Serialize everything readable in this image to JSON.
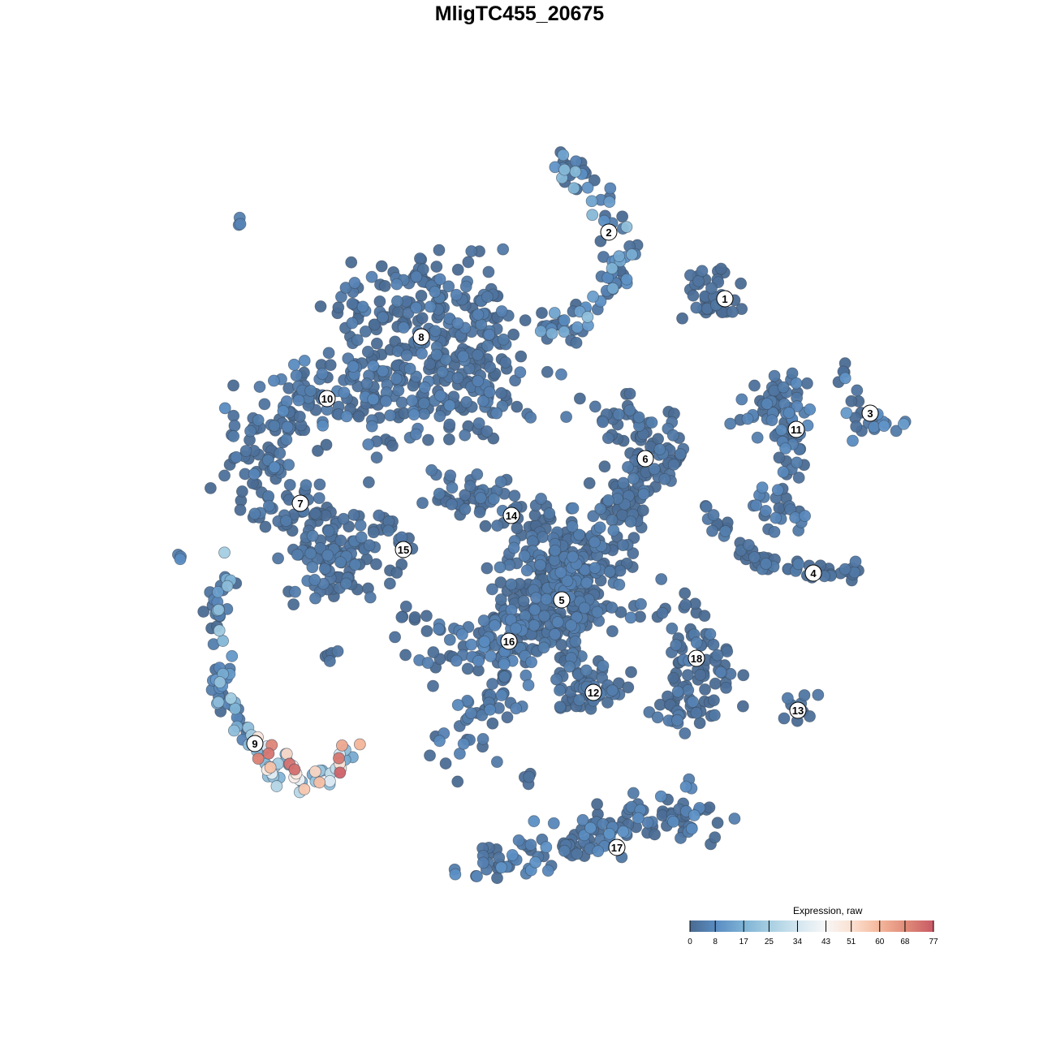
{
  "chart_data": {
    "type": "scatter",
    "title": "MligTC455_20675",
    "xlabel": "",
    "ylabel": "",
    "axes_visible": false,
    "grid": false,
    "xlim": [
      -50,
      50
    ],
    "ylim": [
      -50,
      50
    ],
    "color_scale": {
      "title": "Expression, raw",
      "min": 0,
      "max": 77,
      "ticks": [
        0,
        8,
        17,
        25,
        34,
        43,
        51,
        60,
        68,
        77
      ],
      "colors": [
        "#4a6a91",
        "#5b8ec4",
        "#7fb3d5",
        "#a9d0e2",
        "#d4e6f0",
        "#f7f7f7",
        "#fbe0d0",
        "#f4b79b",
        "#e08a78",
        "#c85a66"
      ],
      "placement": "bottom-right"
    },
    "clusters": [
      {
        "label": "1",
        "center": [
          25.3,
          27.2
        ],
        "path": [
          [
            23,
            30
          ],
          [
            25,
            27
          ],
          [
            22,
            27
          ]
        ],
        "spread": 1.3,
        "n": 40,
        "expr": [
          0,
          3
        ]
      },
      {
        "label": "2",
        "center": [
          11,
          35.4
        ],
        "path": [
          [
            4,
            44
          ],
          [
            8,
            42
          ],
          [
            12,
            37
          ],
          [
            13,
            33
          ],
          [
            10,
            28
          ],
          [
            8,
            26
          ],
          [
            6,
            24
          ],
          [
            2,
            23
          ]
        ],
        "spread": 1.0,
        "n": 90,
        "expr": [
          0,
          22
        ]
      },
      {
        "label": "3",
        "center": [
          43.2,
          13.1
        ],
        "path": [
          [
            38,
            19
          ],
          [
            41,
            17
          ],
          [
            42,
            13
          ],
          [
            46,
            12
          ],
          [
            41,
            11
          ]
        ],
        "spread": 0.8,
        "n": 25,
        "expr": [
          0,
          12
        ]
      },
      {
        "label": "4",
        "center": [
          36.2,
          -6.6
        ],
        "path": [
          [
            22,
            2
          ],
          [
            25,
            -2
          ],
          [
            29,
            -5
          ],
          [
            34,
            -6
          ],
          [
            37,
            -7
          ],
          [
            42,
            -6
          ]
        ],
        "spread": 0.7,
        "n": 55,
        "expr": [
          0,
          5
        ]
      },
      {
        "label": "5",
        "center": [
          5.2,
          -9.9
        ],
        "path": [
          [
            3,
            -4
          ],
          [
            8,
            -5
          ],
          [
            7,
            -10
          ],
          [
            2,
            -12
          ],
          [
            5,
            -8
          ]
        ],
        "spread": 3.0,
        "n": 320,
        "expr": [
          0,
          6
        ]
      },
      {
        "label": "6",
        "center": [
          15.5,
          7.5
        ],
        "path": [
          [
            11,
            11
          ],
          [
            16,
            11
          ],
          [
            18,
            7
          ],
          [
            14,
            4
          ],
          [
            12,
            2
          ],
          [
            13,
            -3
          ]
        ],
        "spread": 1.8,
        "n": 130,
        "expr": [
          0,
          5
        ]
      },
      {
        "label": "7",
        "center": [
          -27,
          2
        ],
        "path": [
          [
            -33,
            8
          ],
          [
            -30,
            3
          ],
          [
            -25,
            0
          ],
          [
            -24,
            -6
          ],
          [
            -21,
            -2
          ],
          [
            -23,
            -7
          ]
        ],
        "spread": 2.3,
        "n": 170,
        "expr": [
          0,
          5
        ]
      },
      {
        "label": "8",
        "center": [
          -12.1,
          22.5
        ],
        "path": [
          [
            -20,
            25
          ],
          [
            -12,
            27
          ],
          [
            -5,
            25
          ],
          [
            -4,
            15
          ],
          [
            -10,
            16
          ],
          [
            -18,
            18
          ]
        ],
        "spread": 3.0,
        "n": 320,
        "expr": [
          0,
          6
        ]
      },
      {
        "label": "9",
        "center": [
          -32.6,
          -27.6
        ],
        "path": [
          [
            -33,
            -28
          ],
          [
            -29,
            -31
          ],
          [
            -25,
            -32
          ],
          [
            -22,
            -30
          ],
          [
            -21,
            -28
          ]
        ],
        "spread": 1.3,
        "n": 55,
        "expr": [
          15,
          77
        ]
      },
      {
        "label": "10",
        "center": [
          -23.7,
          14.9
        ],
        "path": [
          [
            -33,
            10
          ],
          [
            -28,
            15
          ],
          [
            -20,
            16
          ],
          [
            -14,
            12
          ]
        ],
        "spread": 2.5,
        "n": 130,
        "expr": [
          0,
          8
        ]
      },
      {
        "label": "11",
        "center": [
          34.1,
          11.1
        ],
        "path": [
          [
            28,
            12
          ],
          [
            31,
            14
          ],
          [
            33,
            17
          ],
          [
            34,
            10
          ],
          [
            33,
            5
          ],
          [
            30,
            1
          ],
          [
            35,
            1
          ]
        ],
        "spread": 1.2,
        "n": 95,
        "expr": [
          0,
          8
        ]
      },
      {
        "label": "12",
        "center": [
          9.1,
          -21.3
        ],
        "path": [
          [
            6,
            -18
          ],
          [
            8,
            -22
          ],
          [
            11,
            -19
          ]
        ],
        "spread": 1.5,
        "n": 60,
        "expr": [
          0,
          5
        ]
      },
      {
        "label": "13",
        "center": [
          34.3,
          -23.5
        ],
        "path": [
          [
            32,
            -24
          ],
          [
            35,
            -24
          ],
          [
            37,
            -22
          ]
        ],
        "spread": 0.6,
        "n": 10,
        "expr": [
          0,
          6
        ]
      },
      {
        "label": "14",
        "center": [
          -1,
          0.5
        ],
        "path": [
          [
            -11,
            3
          ],
          [
            -5,
            3
          ],
          [
            -2,
            1
          ],
          [
            3,
            0
          ]
        ],
        "spread": 1.5,
        "n": 65,
        "expr": [
          0,
          5
        ]
      },
      {
        "label": "15",
        "center": [
          -14.3,
          -3.7
        ],
        "path": [
          [
            -18,
            -1
          ],
          [
            -15,
            -2
          ],
          [
            -14,
            -5
          ],
          [
            -16,
            -7
          ]
        ],
        "spread": 0.7,
        "n": 20,
        "expr": [
          0,
          6
        ]
      },
      {
        "label": "16",
        "center": [
          -1.3,
          -15
        ],
        "path": [
          [
            -12,
            -17
          ],
          [
            -8,
            -15
          ],
          [
            -3,
            -15
          ],
          [
            0,
            -13
          ],
          [
            -2,
            -20
          ],
          [
            -5,
            -25
          ],
          [
            -7,
            -29
          ]
        ],
        "spread": 1.8,
        "n": 130,
        "expr": [
          0,
          8
        ]
      },
      {
        "label": "17",
        "center": [
          12,
          -40.4
        ],
        "path": [
          [
            -6,
            -43
          ],
          [
            0,
            -42
          ],
          [
            6,
            -40
          ],
          [
            12,
            -37
          ],
          [
            18,
            -36
          ],
          [
            24,
            -37
          ]
        ],
        "spread": 1.5,
        "n": 140,
        "expr": [
          0,
          10
        ]
      },
      {
        "label": "18",
        "center": [
          21.8,
          -17.1
        ],
        "path": [
          [
            16,
            -11
          ],
          [
            22,
            -13
          ],
          [
            20,
            -18
          ],
          [
            19,
            -24
          ],
          [
            26,
            -20
          ],
          [
            23,
            -14
          ]
        ],
        "spread": 1.5,
        "n": 95,
        "expr": [
          0,
          6
        ]
      }
    ],
    "unlabeled_groups": [
      {
        "path": [
          [
            -36,
            -4
          ],
          [
            -37,
            -10
          ],
          [
            -37,
            -17
          ],
          [
            -36,
            -23
          ],
          [
            -33,
            -27
          ]
        ],
        "spread": 0.8,
        "n": 60,
        "expr": [
          0,
          25
        ]
      },
      {
        "path": [
          [
            -35,
            37
          ],
          [
            -34,
            36
          ]
        ],
        "spread": 0.3,
        "n": 3,
        "expr": [
          5,
          12
        ]
      },
      {
        "path": [
          [
            -42,
            -5
          ],
          [
            -41,
            -4
          ]
        ],
        "spread": 0.3,
        "n": 3,
        "expr": [
          5,
          12
        ]
      },
      {
        "path": [
          [
            -23,
            -16
          ],
          [
            -23,
            -17
          ]
        ],
        "spread": 0.4,
        "n": 5,
        "expr": [
          0,
          3
        ]
      },
      {
        "path": [
          [
            1,
            -31
          ],
          [
            1,
            -32
          ]
        ],
        "spread": 0.4,
        "n": 4,
        "expr": [
          0,
          3
        ]
      },
      {
        "path": [
          [
            -15,
            -12
          ],
          [
            -12,
            -12
          ]
        ],
        "spread": 0.5,
        "n": 6,
        "expr": [
          0,
          4
        ]
      }
    ]
  }
}
